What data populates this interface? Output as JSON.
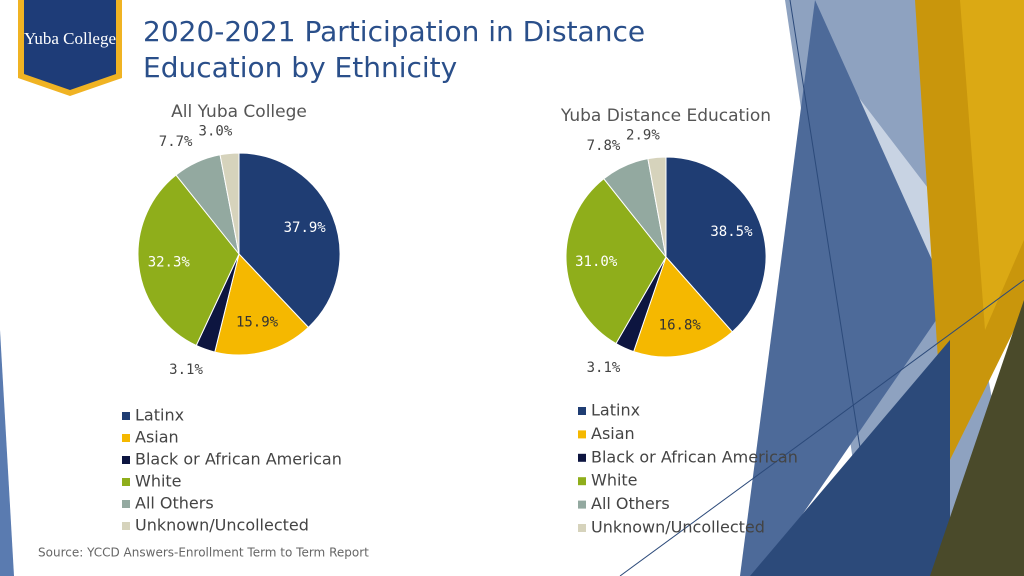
{
  "title": "2020-2021 Participation in Distance Education by Ethnicity",
  "source": "Source: YCCD Answers-Enrollment Term to Term Report",
  "logo": "Yuba College",
  "chart_data": [
    {
      "type": "pie",
      "title": "All Yuba College",
      "categories": [
        "Latinx",
        "Asian",
        "Black or African American",
        "White",
        "All Others",
        "Unknown/Uncollected"
      ],
      "values": [
        37.9,
        15.9,
        3.1,
        32.3,
        7.7,
        3.0
      ],
      "value_labels": [
        "37.9%",
        "15.9%",
        "3.1%",
        "32.3%",
        "7.7%",
        "3.0%"
      ],
      "colors": [
        "#1f3d73",
        "#f5b800",
        "#0d1540",
        "#8fae1b",
        "#93a9a0",
        "#d6d3bc"
      ]
    },
    {
      "type": "pie",
      "title": "Yuba Distance Education",
      "categories": [
        "Latinx",
        "Asian",
        "Black or African American",
        "White",
        "All Others",
        "Unknown/Uncollected"
      ],
      "values": [
        38.5,
        16.8,
        3.1,
        31.0,
        7.8,
        2.9
      ],
      "value_labels": [
        "38.5%",
        "16.8%",
        "3.1%",
        "31.0%",
        "7.8%",
        "2.9%"
      ],
      "colors": [
        "#1f3d73",
        "#f5b800",
        "#0d1540",
        "#8fae1b",
        "#93a9a0",
        "#d6d3bc"
      ]
    }
  ]
}
